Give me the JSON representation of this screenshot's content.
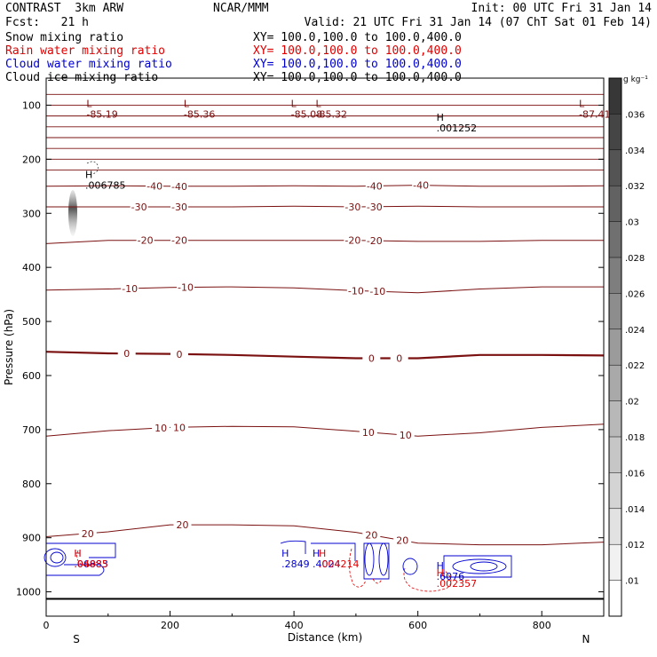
{
  "header": {
    "title_left": "CONTRAST  3km ARW",
    "title_center": "NCAR/MMM",
    "init": "Init: 00 UTC Fri 31 Jan 14",
    "fcst": "Fcst:   21 h",
    "valid": "Valid: 21 UTC Fri 31 Jan 14 (07 ChT Sat 01 Feb 14)"
  },
  "fields": [
    {
      "name": "Snow mixing ratio",
      "xy": "XY= 100.0,100.0 to 100.0,400.0",
      "color": "#000000"
    },
    {
      "name": "Rain water mixing ratio",
      "xy": "XY= 100.0,100.0 to 100.0,400.0",
      "color": "#e00000"
    },
    {
      "name": "Cloud water mixing ratio",
      "xy": "XY= 100.0,100.0 to 100.0,400.0",
      "color": "#0000d0"
    },
    {
      "name": "Cloud ice mixing ratio",
      "xy": "XY= 100.0,100.0 to 100.0,400.0",
      "color": "#000000"
    }
  ],
  "chart_data": {
    "type": "contour",
    "xlabel": "Distance (km)",
    "ylabel": "Pressure (hPa)",
    "xlim": [
      0,
      900
    ],
    "ylim": [
      1045,
      50
    ],
    "x_ticks": [
      0,
      200,
      400,
      600,
      800
    ],
    "x_tick_labels": [
      "0",
      "200",
      "400",
      "600",
      "800"
    ],
    "y_ticks": [
      100,
      200,
      300,
      400,
      500,
      600,
      700,
      800,
      900,
      1000
    ],
    "y_tick_labels": [
      "100",
      "200",
      "300",
      "400",
      "500",
      "600",
      "700",
      "800",
      "900",
      "1000"
    ],
    "end_labels": {
      "left": "S",
      "right": "N"
    },
    "colorbar": {
      "unit": "g kg⁻¹",
      "levels": [
        0.01,
        0.012,
        0.014,
        0.016,
        0.018,
        0.02,
        0.022,
        0.024,
        0.026,
        0.028,
        0.03,
        0.032,
        0.034,
        0.036
      ],
      "labels": [
        ".01",
        ".012",
        ".014",
        ".016",
        ".018",
        ".02",
        ".022",
        ".024",
        ".026",
        ".028",
        ".03",
        ".032",
        ".034",
        ".036"
      ]
    },
    "temperature_isotherms": [
      {
        "value": -40,
        "label_x": [
          175,
          215,
          530,
          605
        ],
        "pressure": [
          250,
          249,
          250,
          250,
          249,
          250,
          248,
          250,
          250,
          249
        ]
      },
      {
        "value": -30,
        "label_x": [
          150,
          215,
          495,
          530
        ],
        "pressure": [
          288,
          288,
          288,
          288,
          287,
          288,
          287,
          288,
          288,
          288
        ]
      },
      {
        "value": -20,
        "label_x": [
          160,
          215,
          495,
          530
        ],
        "pressure": [
          356,
          350,
          350,
          350,
          350,
          350,
          352,
          352,
          350,
          350
        ]
      },
      {
        "value": -10,
        "label_x": [
          135,
          225,
          500,
          535
        ],
        "pressure": [
          442,
          440,
          437,
          436,
          438,
          443,
          447,
          440,
          436,
          436
        ]
      },
      {
        "value": 0,
        "label_x": [
          130,
          215,
          525,
          570
        ],
        "pressure": [
          556,
          559,
          560,
          562,
          565,
          568,
          568,
          562,
          562,
          563
        ]
      },
      {
        "value": 10,
        "label_x": [
          185,
          215,
          520,
          580
        ],
        "pressure": [
          712,
          702,
          696,
          694,
          695,
          703,
          712,
          706,
          696,
          690
        ]
      },
      {
        "value": 20,
        "label_x": [
          67,
          220,
          525,
          575
        ],
        "pressure": [
          898,
          889,
          876,
          876,
          878,
          890,
          910,
          913,
          913,
          908
        ]
      }
    ],
    "extrema_labels": [
      {
        "type": "L",
        "x": 65,
        "p": 107,
        "text": "-85.19"
      },
      {
        "type": "L",
        "x": 222,
        "p": 107,
        "text": "-85.36"
      },
      {
        "type": "L",
        "x": 395,
        "p": 107,
        "text": "-85.08"
      },
      {
        "type": "L",
        "x": 435,
        "p": 107,
        "text": "-85.32"
      },
      {
        "type": "L",
        "x": 860,
        "p": 107,
        "text": "-87.41"
      },
      {
        "type": "H",
        "x": 630,
        "p": 132,
        "text": ".001252"
      },
      {
        "type": "H",
        "x": 63,
        "p": 238,
        "text": ".006785"
      },
      {
        "type": "H",
        "x": 45,
        "p": 938,
        "text": ".06883",
        "series": "cloud"
      },
      {
        "type": "H",
        "x": 45,
        "p": 938,
        "text": ".04085",
        "series": "rain"
      },
      {
        "type": "H",
        "x": 380,
        "p": 938,
        "text": ".2849",
        "series": "cloud"
      },
      {
        "type": "H",
        "x": 430,
        "p": 938,
        "text": ".4024",
        "series": "cloud"
      },
      {
        "type": "H",
        "x": 440,
        "p": 938,
        "text": ".004214",
        "series": "rain"
      },
      {
        "type": "H",
        "x": 630,
        "p": 961,
        "text": ".6076",
        "series": "cloud"
      },
      {
        "type": "H",
        "x": 630,
        "p": 974,
        "text": ".002357",
        "series": "rain"
      }
    ]
  }
}
